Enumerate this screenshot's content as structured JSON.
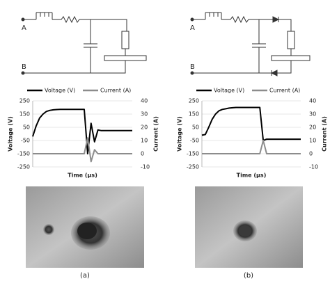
{
  "circuits": [
    {
      "terminal_a": "A",
      "terminal_b": "B"
    },
    {
      "terminal_a": "A",
      "terminal_b": "B"
    }
  ],
  "chart_data": [
    {
      "type": "line",
      "xlabel": "Time (µs)",
      "ylabel": "Voltage (V)",
      "y2label": "Current (A)",
      "ylim": [
        -250,
        250
      ],
      "yticks": [
        -250,
        -150,
        -50,
        50,
        150,
        250
      ],
      "y2lim": [
        -10,
        40
      ],
      "y2ticks": [
        -10,
        0,
        10,
        20,
        30,
        40
      ],
      "series": [
        {
          "name": "Voltage (V)",
          "color": "#000000",
          "values": [
            -20,
            60,
            120,
            150,
            170,
            178,
            182,
            184,
            185,
            185,
            185,
            185,
            185,
            185,
            185,
            185,
            -150,
            80,
            -60,
            30,
            25,
            25,
            25,
            25,
            25,
            25,
            25,
            25,
            25,
            25
          ]
        },
        {
          "name": "Current (A)",
          "color": "#8c8c8c",
          "axis": "y2",
          "values": [
            0,
            0,
            0,
            0,
            0,
            0,
            0,
            0,
            0,
            0,
            0,
            0,
            0,
            0,
            0,
            0,
            12,
            -6,
            3,
            0,
            0,
            0,
            0,
            0,
            0,
            0,
            0,
            0,
            0,
            0
          ]
        }
      ]
    },
    {
      "type": "line",
      "xlabel": "Time (µs)",
      "ylabel": "Voltage (V)",
      "y2label": "Current (A)",
      "ylim": [
        -250,
        250
      ],
      "yticks": [
        -250,
        -150,
        -50,
        50,
        150,
        250
      ],
      "y2lim": [
        -10,
        40
      ],
      "y2ticks": [
        -10,
        0,
        10,
        20,
        30,
        40
      ],
      "series": [
        {
          "name": "Voltage (V)",
          "color": "#000000",
          "values": [
            -10,
            -5,
            50,
            110,
            150,
            175,
            185,
            190,
            195,
            198,
            200,
            200,
            200,
            200,
            200,
            200,
            200,
            200,
            -50,
            -40,
            -40,
            -40,
            -40,
            -40,
            -40,
            -40,
            -40,
            -40,
            -40,
            -40
          ]
        },
        {
          "name": "Current (A)",
          "color": "#8c8c8c",
          "axis": "y2",
          "values": [
            0,
            0,
            0,
            0,
            0,
            0,
            0,
            0,
            0,
            0,
            0,
            0,
            0,
            0,
            0,
            0,
            0,
            0,
            10,
            0,
            0,
            0,
            0,
            0,
            0,
            0,
            0,
            0,
            0,
            0
          ]
        }
      ]
    }
  ],
  "panel_labels": [
    "(a)",
    "(b)"
  ]
}
